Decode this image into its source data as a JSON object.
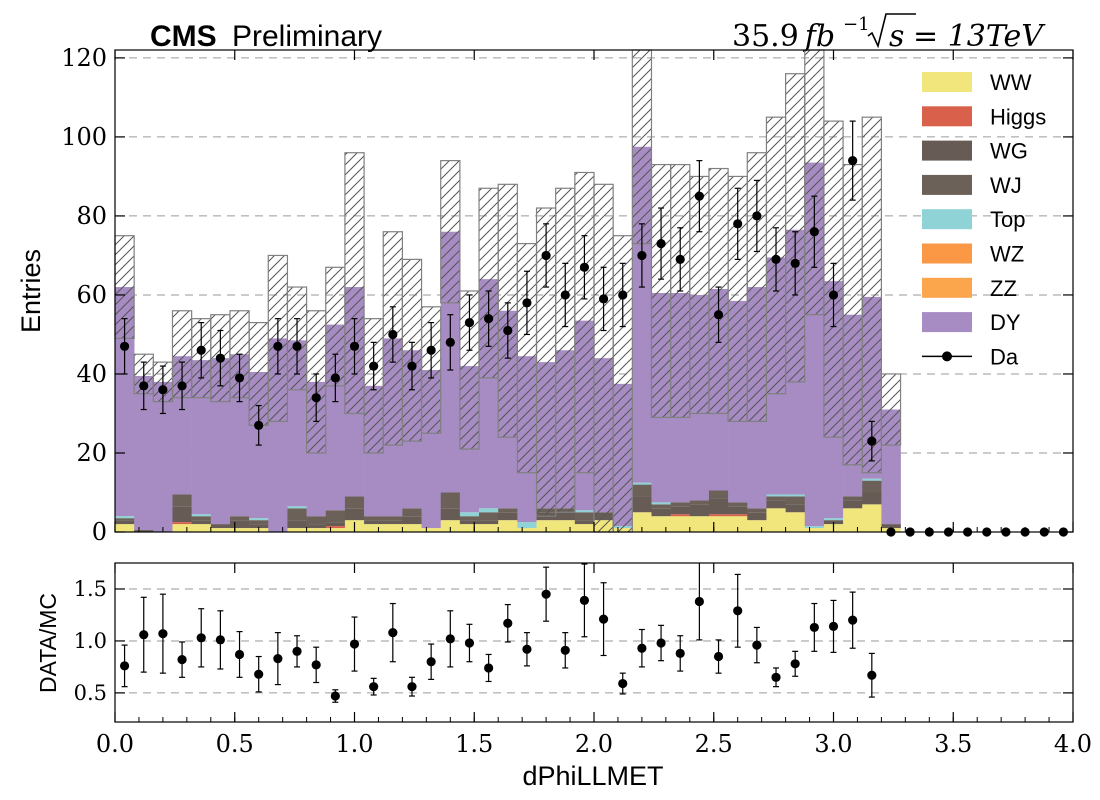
{
  "header": {
    "cms": "CMS",
    "preliminary": "Preliminary",
    "lumi_value": "35.9",
    "lumi_unit": "fb",
    "lumi_exp": "−1",
    "sqrt_s": "s",
    "energy": "= 13TeV"
  },
  "chart_data": {
    "type": "bar",
    "subtype": "stacked-histogram-with-ratio",
    "xlabel": "dPhiLLMET",
    "ylabel": "Entries",
    "ratio_ylabel": "DATA/MC",
    "xlim": [
      0.0,
      4.0
    ],
    "ylim": [
      0,
      122
    ],
    "ratio_ylim": [
      0.22,
      1.75
    ],
    "bin_width": 0.08,
    "x_ticks": [
      "0.0",
      "0.5",
      "1.0",
      "1.5",
      "2.0",
      "2.5",
      "3.0",
      "3.5",
      "4.0"
    ],
    "y_ticks": [
      "0",
      "20",
      "40",
      "60",
      "80",
      "100",
      "120"
    ],
    "ratio_y_ticks": [
      "0.5",
      "1.0",
      "1.5"
    ],
    "grid": true,
    "legend_position": "top-right",
    "colors": {
      "WW": "#f0e67c",
      "Higgs": "#d9604a",
      "WG": "#665c55",
      "WJ": "#6b6158",
      "Top": "#8fd3d6",
      "WZ": "#fb9846",
      "ZZ": "#fba54c",
      "DY": "#a68cc2",
      "Data": "#000000",
      "uncertainty_edge": "#808080"
    },
    "legend": [
      "WW",
      "Higgs",
      "WG",
      "WJ",
      "Top",
      "WZ",
      "ZZ",
      "DY",
      "Da"
    ],
    "series": [
      {
        "name": "WW",
        "values": [
          2,
          0,
          0,
          2,
          2,
          1,
          1,
          1,
          0,
          1,
          1,
          1,
          3,
          2,
          2,
          2,
          1,
          3,
          2,
          2,
          3,
          1,
          3,
          3,
          2,
          3,
          1,
          5,
          4,
          4,
          4,
          4,
          4,
          3,
          6,
          5,
          1,
          2,
          6,
          7,
          1
        ]
      },
      {
        "name": "Higgs",
        "values": [
          0,
          0,
          0,
          0.5,
          0,
          0,
          0,
          0,
          0,
          0,
          0,
          0.5,
          0,
          0,
          0,
          0,
          0,
          0,
          0,
          0,
          0,
          0,
          0,
          0,
          0,
          0,
          0,
          0,
          0,
          0.5,
          0,
          0.5,
          0.5,
          0,
          0,
          0,
          0,
          0,
          0,
          0,
          0
        ]
      },
      {
        "name": "WG",
        "values": [
          1,
          0,
          0,
          4,
          1,
          1,
          2,
          1,
          0,
          2,
          1,
          1,
          3,
          1,
          1,
          2,
          0,
          3,
          1,
          1,
          2,
          0,
          2,
          2,
          1,
          2,
          0,
          4,
          2,
          2,
          3,
          4,
          2,
          2,
          2,
          2,
          0,
          1,
          2,
          3,
          1
        ]
      },
      {
        "name": "WJ",
        "values": [
          0.5,
          0.5,
          0,
          3,
          1,
          0,
          1,
          1,
          0,
          3,
          2,
          3,
          3,
          1,
          1,
          2,
          0,
          4,
          1,
          2,
          1,
          0,
          1,
          1,
          2,
          0,
          0,
          3,
          1,
          1,
          1,
          2,
          1,
          1,
          1,
          2,
          0,
          0,
          1,
          3,
          0
        ]
      },
      {
        "name": "Top",
        "values": [
          0.5,
          0,
          0,
          0,
          0.5,
          0,
          0,
          0.5,
          0,
          0.5,
          0,
          0,
          0,
          0,
          0,
          0,
          0,
          0,
          1,
          1,
          0,
          1.5,
          0,
          0,
          0.5,
          0,
          0.5,
          0.5,
          0.5,
          0,
          0,
          0,
          0,
          0,
          0.5,
          0.5,
          0.5,
          0.5,
          0,
          0.5,
          0
        ]
      },
      {
        "name": "WZ",
        "values": [
          0,
          0,
          0,
          0,
          0,
          0,
          0,
          0,
          0,
          0,
          0,
          0,
          0,
          0,
          0,
          0,
          0,
          0,
          0,
          0,
          0,
          0,
          0,
          0,
          0,
          0,
          0,
          0,
          0,
          0,
          0,
          0,
          0,
          0,
          0,
          0,
          0,
          0,
          0,
          0,
          0
        ]
      },
      {
        "name": "ZZ",
        "values": [
          0,
          0,
          0,
          0,
          0,
          0,
          0,
          0,
          0,
          0,
          0,
          0,
          0,
          0,
          0,
          0,
          0,
          0,
          0,
          0,
          0,
          0,
          0,
          0,
          0,
          0,
          0,
          0,
          0,
          0,
          0,
          0,
          0,
          0,
          0,
          0,
          0,
          0,
          0,
          0,
          0
        ]
      },
      {
        "name": "DY",
        "values": [
          58,
          39,
          38,
          35,
          39,
          42,
          41,
          37,
          49,
          42,
          34,
          47,
          53,
          33,
          45,
          40,
          40,
          66,
          37,
          58,
          50,
          42,
          37,
          40,
          48,
          39,
          36,
          85,
          53,
          53,
          52,
          51,
          51,
          56,
          60,
          67,
          92,
          60,
          46,
          46,
          29
        ]
      }
    ],
    "mc_total": [
      62,
      40,
      38,
      45,
      44,
      44,
      45,
      40,
      49,
      49,
      38,
      52,
      63,
      37,
      49,
      46,
      41,
      76,
      41,
      63,
      56,
      44,
      43,
      46,
      53,
      44,
      37,
      98,
      61,
      61,
      60,
      61,
      59,
      62,
      70,
      77,
      94,
      64,
      55,
      60,
      31
    ],
    "uncertainty": [
      13,
      5,
      5,
      11,
      10,
      11,
      11,
      13,
      21,
      13,
      18,
      15,
      33,
      17,
      27,
      23,
      16,
      18,
      20,
      24,
      32,
      29,
      39,
      41,
      38,
      44,
      38,
      25,
      32,
      32,
      30,
      31,
      31,
      34,
      35,
      39,
      39,
      40,
      38,
      45,
      9
    ],
    "data": {
      "name": "Da",
      "values": [
        47,
        37,
        36,
        37,
        46,
        44,
        39,
        27,
        47,
        47,
        34,
        39,
        47,
        42,
        50,
        42,
        46,
        48,
        53,
        54,
        51,
        58,
        70,
        60,
        67,
        59,
        60,
        70,
        73,
        69,
        85,
        55,
        78,
        80,
        69,
        68,
        76,
        60,
        94,
        23,
        0,
        0,
        0,
        0,
        0,
        0,
        0,
        0,
        0,
        0
      ],
      "errors": [
        7,
        6,
        6,
        6,
        7,
        7,
        6,
        5,
        7,
        7,
        6,
        6,
        7,
        6,
        7,
        6,
        7,
        7,
        7,
        7,
        7,
        8,
        8,
        8,
        8,
        8,
        8,
        8,
        9,
        8,
        9,
        7,
        9,
        9,
        8,
        8,
        9,
        8,
        10,
        5,
        0,
        0,
        0,
        0,
        0,
        0,
        0,
        0,
        0,
        0
      ]
    },
    "ratio": {
      "values": [
        0.76,
        1.06,
        1.07,
        0.82,
        1.03,
        1.01,
        0.87,
        0.68,
        0.83,
        0.9,
        0.77,
        0.47,
        0.97,
        0.56,
        1.08,
        0.56,
        0.8,
        1.02,
        0.98,
        0.74,
        1.17,
        0.92,
        1.45,
        0.91,
        1.39,
        1.21,
        0.59,
        0.93,
        0.98,
        0.88,
        1.38,
        0.85,
        1.29,
        0.96,
        0.65,
        0.78,
        1.13,
        1.14,
        1.2,
        0.67
      ],
      "errors": [
        0.2,
        0.36,
        0.38,
        0.17,
        0.28,
        0.28,
        0.22,
        0.17,
        0.25,
        0.15,
        0.17,
        0.06,
        0.26,
        0.08,
        0.28,
        0.09,
        0.17,
        0.27,
        0.18,
        0.13,
        0.18,
        0.16,
        0.26,
        0.17,
        0.35,
        0.35,
        0.1,
        0.18,
        0.17,
        0.17,
        0.37,
        0.16,
        0.35,
        0.17,
        0.09,
        0.12,
        0.23,
        0.25,
        0.27,
        0.21
      ]
    }
  }
}
